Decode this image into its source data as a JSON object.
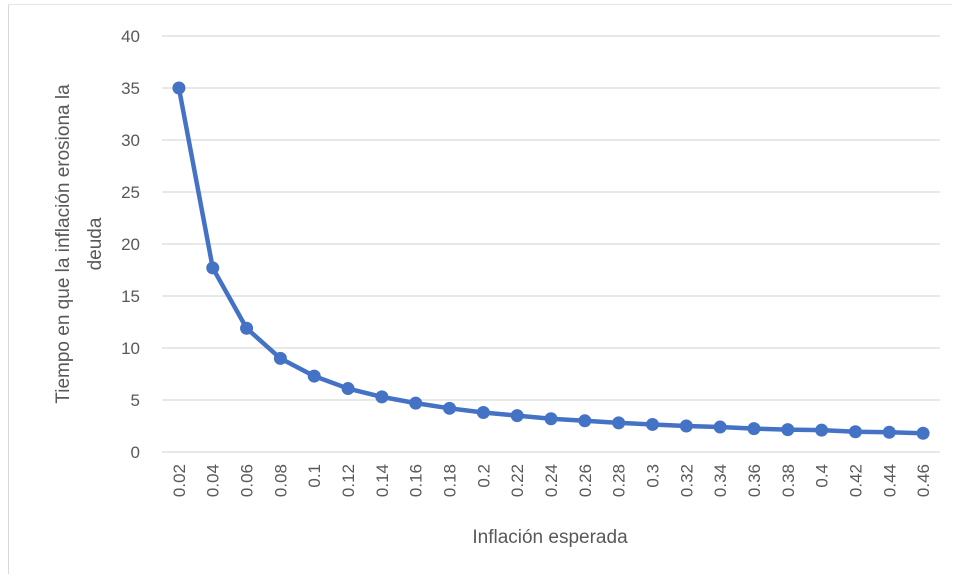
{
  "chart_data": {
    "type": "line",
    "title": "",
    "xlabel": "Inflación esperada",
    "ylabel_lines": [
      "Tiempo en que la inflación erosiona la",
      "deuda"
    ],
    "x": [
      "0.02",
      "0.04",
      "0.06",
      "0.08",
      "0.1",
      "0.12",
      "0.14",
      "0.16",
      "0.18",
      "0.2",
      "0.22",
      "0.24",
      "0.26",
      "0.28",
      "0.3",
      "0.32",
      "0.34",
      "0.36",
      "0.38",
      "0.4",
      "0.42",
      "0.44",
      "0.46"
    ],
    "series": [
      {
        "values": [
          35.0,
          17.7,
          11.9,
          9.0,
          7.3,
          6.1,
          5.3,
          4.7,
          4.2,
          3.8,
          3.5,
          3.2,
          3.0,
          2.8,
          2.65,
          2.5,
          2.4,
          2.25,
          2.15,
          2.1,
          1.95,
          1.9,
          1.8
        ],
        "color": "#4472c4"
      }
    ],
    "ylim": [
      0,
      40
    ],
    "yticks": [
      "0",
      "5",
      "10",
      "15",
      "20",
      "25",
      "30",
      "35",
      "40"
    ],
    "grid": true,
    "legend": "none"
  }
}
